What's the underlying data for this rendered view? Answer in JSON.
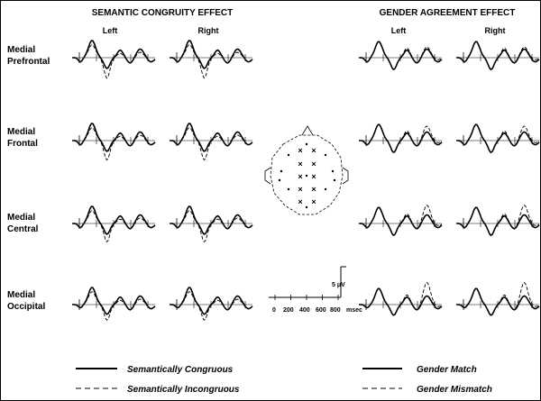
{
  "headers": {
    "semantic": "SEMANTIC CONGRUITY EFFECT",
    "gender": "GENDER AGREEMENT EFFECT"
  },
  "columns": {
    "left": "Left",
    "right": "Right"
  },
  "regions": [
    {
      "line1": "Medial",
      "line2": "Prefrontal"
    },
    {
      "line1": "Medial",
      "line2": "Frontal"
    },
    {
      "line1": "Medial",
      "line2": "Central"
    },
    {
      "line1": "Medial",
      "line2": "Occipital"
    }
  ],
  "scale": {
    "amplitude": "5 μV",
    "ticks": [
      "0",
      "200",
      "400",
      "600",
      "800"
    ],
    "unit": "msec"
  },
  "legends": {
    "semantic_solid": "Semantically Congruous",
    "semantic_dashed": "Semantically Incongruous",
    "gender_solid": "Gender Match",
    "gender_dashed": "Gender Mismatch"
  },
  "colors": {
    "ink": "#000000",
    "background": "#ffffff",
    "border": "#000000"
  },
  "icons": {
    "scalp_map": "electrode-montage-head-icon"
  }
}
